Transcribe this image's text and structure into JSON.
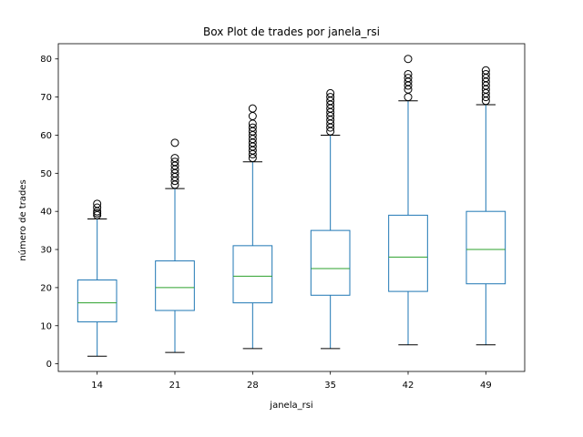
{
  "chart_data": {
    "type": "box",
    "title": "Box Plot de trades por janela_rsi",
    "xlabel": "janela_rsi",
    "ylabel": "número de trades",
    "categories": [
      "14",
      "21",
      "28",
      "35",
      "42",
      "49"
    ],
    "ylim": [
      -2,
      84
    ],
    "yticks": [
      0,
      10,
      20,
      30,
      40,
      50,
      60,
      70,
      80
    ],
    "colors": {
      "box": "#1f77b4",
      "median": "#2ca02c",
      "caps": "#000000",
      "outliers": "#000000"
    },
    "boxes": [
      {
        "category": "14",
        "whisker_low": 2,
        "q1": 11,
        "median": 16,
        "q3": 22,
        "whisker_high": 38,
        "outliers": [
          39,
          39.5,
          40,
          41,
          42
        ]
      },
      {
        "category": "21",
        "whisker_low": 3,
        "q1": 14,
        "median": 20,
        "q3": 27,
        "whisker_high": 46,
        "outliers": [
          47,
          48,
          49,
          50,
          51,
          52,
          53,
          54,
          58
        ]
      },
      {
        "category": "28",
        "whisker_low": 4,
        "q1": 16,
        "median": 23,
        "q3": 31,
        "whisker_high": 53,
        "outliers": [
          54,
          55,
          56,
          57,
          58,
          59,
          60,
          61,
          62,
          63,
          65,
          67
        ]
      },
      {
        "category": "35",
        "whisker_low": 4,
        "q1": 18,
        "median": 25,
        "q3": 35,
        "whisker_high": 60,
        "outliers": [
          61,
          62,
          63,
          64,
          65,
          66,
          67,
          68,
          69,
          70,
          71
        ]
      },
      {
        "category": "42",
        "whisker_low": 5,
        "q1": 19,
        "median": 28,
        "q3": 39,
        "whisker_high": 69,
        "outliers": [
          70,
          72,
          73,
          74,
          75,
          76,
          80
        ]
      },
      {
        "category": "49",
        "whisker_low": 5,
        "q1": 21,
        "median": 30,
        "q3": 40,
        "whisker_high": 68,
        "outliers": [
          69,
          70,
          71,
          72,
          73,
          74,
          75,
          76,
          77
        ]
      }
    ]
  }
}
